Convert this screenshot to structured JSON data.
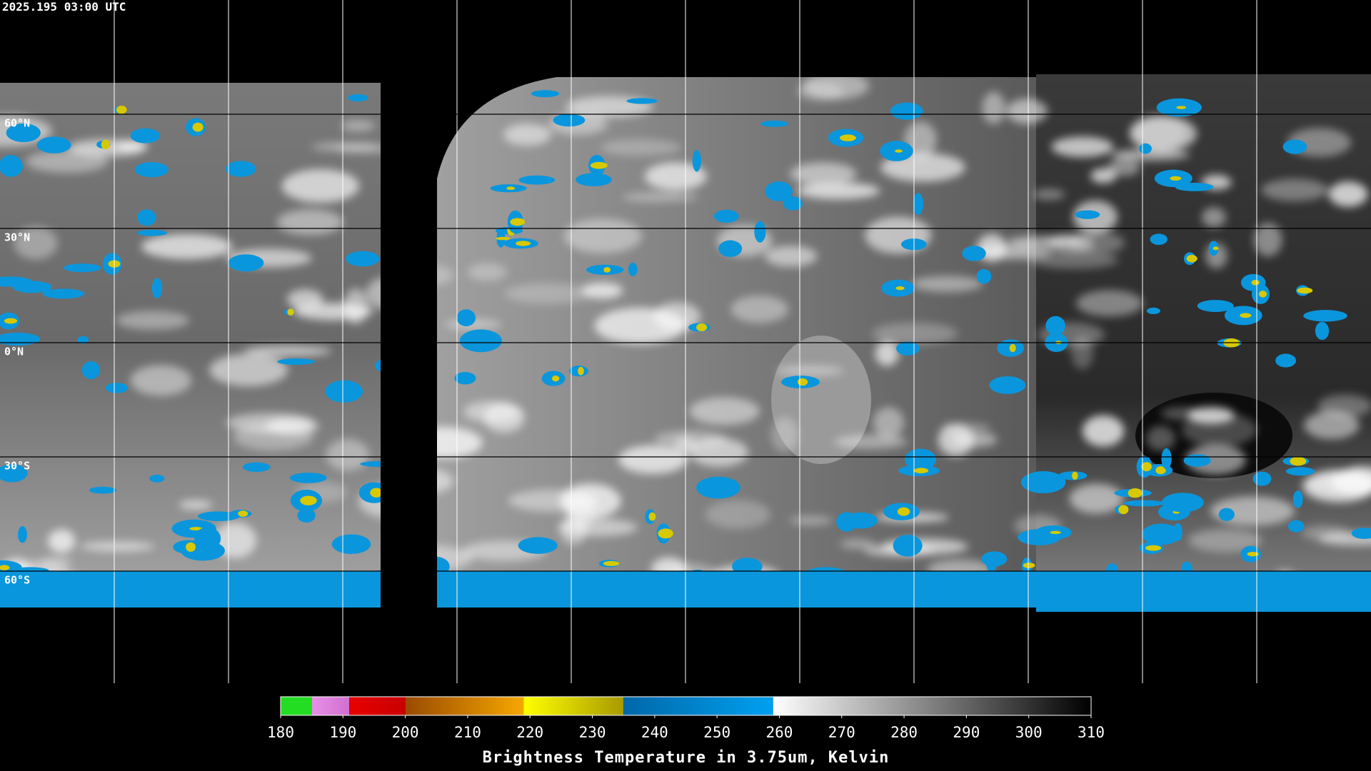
{
  "header": {
    "timestamp": "2025.195 03:00 UTC"
  },
  "map": {
    "latitude_labels": [
      "60°N",
      "30°N",
      "0°N",
      "30°S",
      "60°S"
    ]
  },
  "colorbar": {
    "title": "Brightness Temperature in 3.75um, Kelvin",
    "range": [
      180,
      310
    ],
    "ticks": [
      180,
      190,
      200,
      210,
      220,
      230,
      240,
      250,
      260,
      270,
      280,
      290,
      300,
      310
    ],
    "segments": [
      {
        "from": 180,
        "to": 185,
        "start_color": "#22dd22",
        "end_color": "#22dd22"
      },
      {
        "from": 185,
        "to": 191,
        "start_color": "#e890e8",
        "end_color": "#d070d0"
      },
      {
        "from": 191,
        "to": 200,
        "start_color": "#e80000",
        "end_color": "#c80000"
      },
      {
        "from": 200,
        "to": 219,
        "start_color": "#9a4a00",
        "end_color": "#f5a800"
      },
      {
        "from": 219,
        "to": 235,
        "start_color": "#ffff00",
        "end_color": "#a89a00"
      },
      {
        "from": 235,
        "to": 259,
        "start_color": "#0068a8",
        "end_color": "#00a0f0"
      },
      {
        "from": 259,
        "to": 310,
        "start_color": "#ffffff",
        "end_color": "#000000"
      }
    ]
  }
}
